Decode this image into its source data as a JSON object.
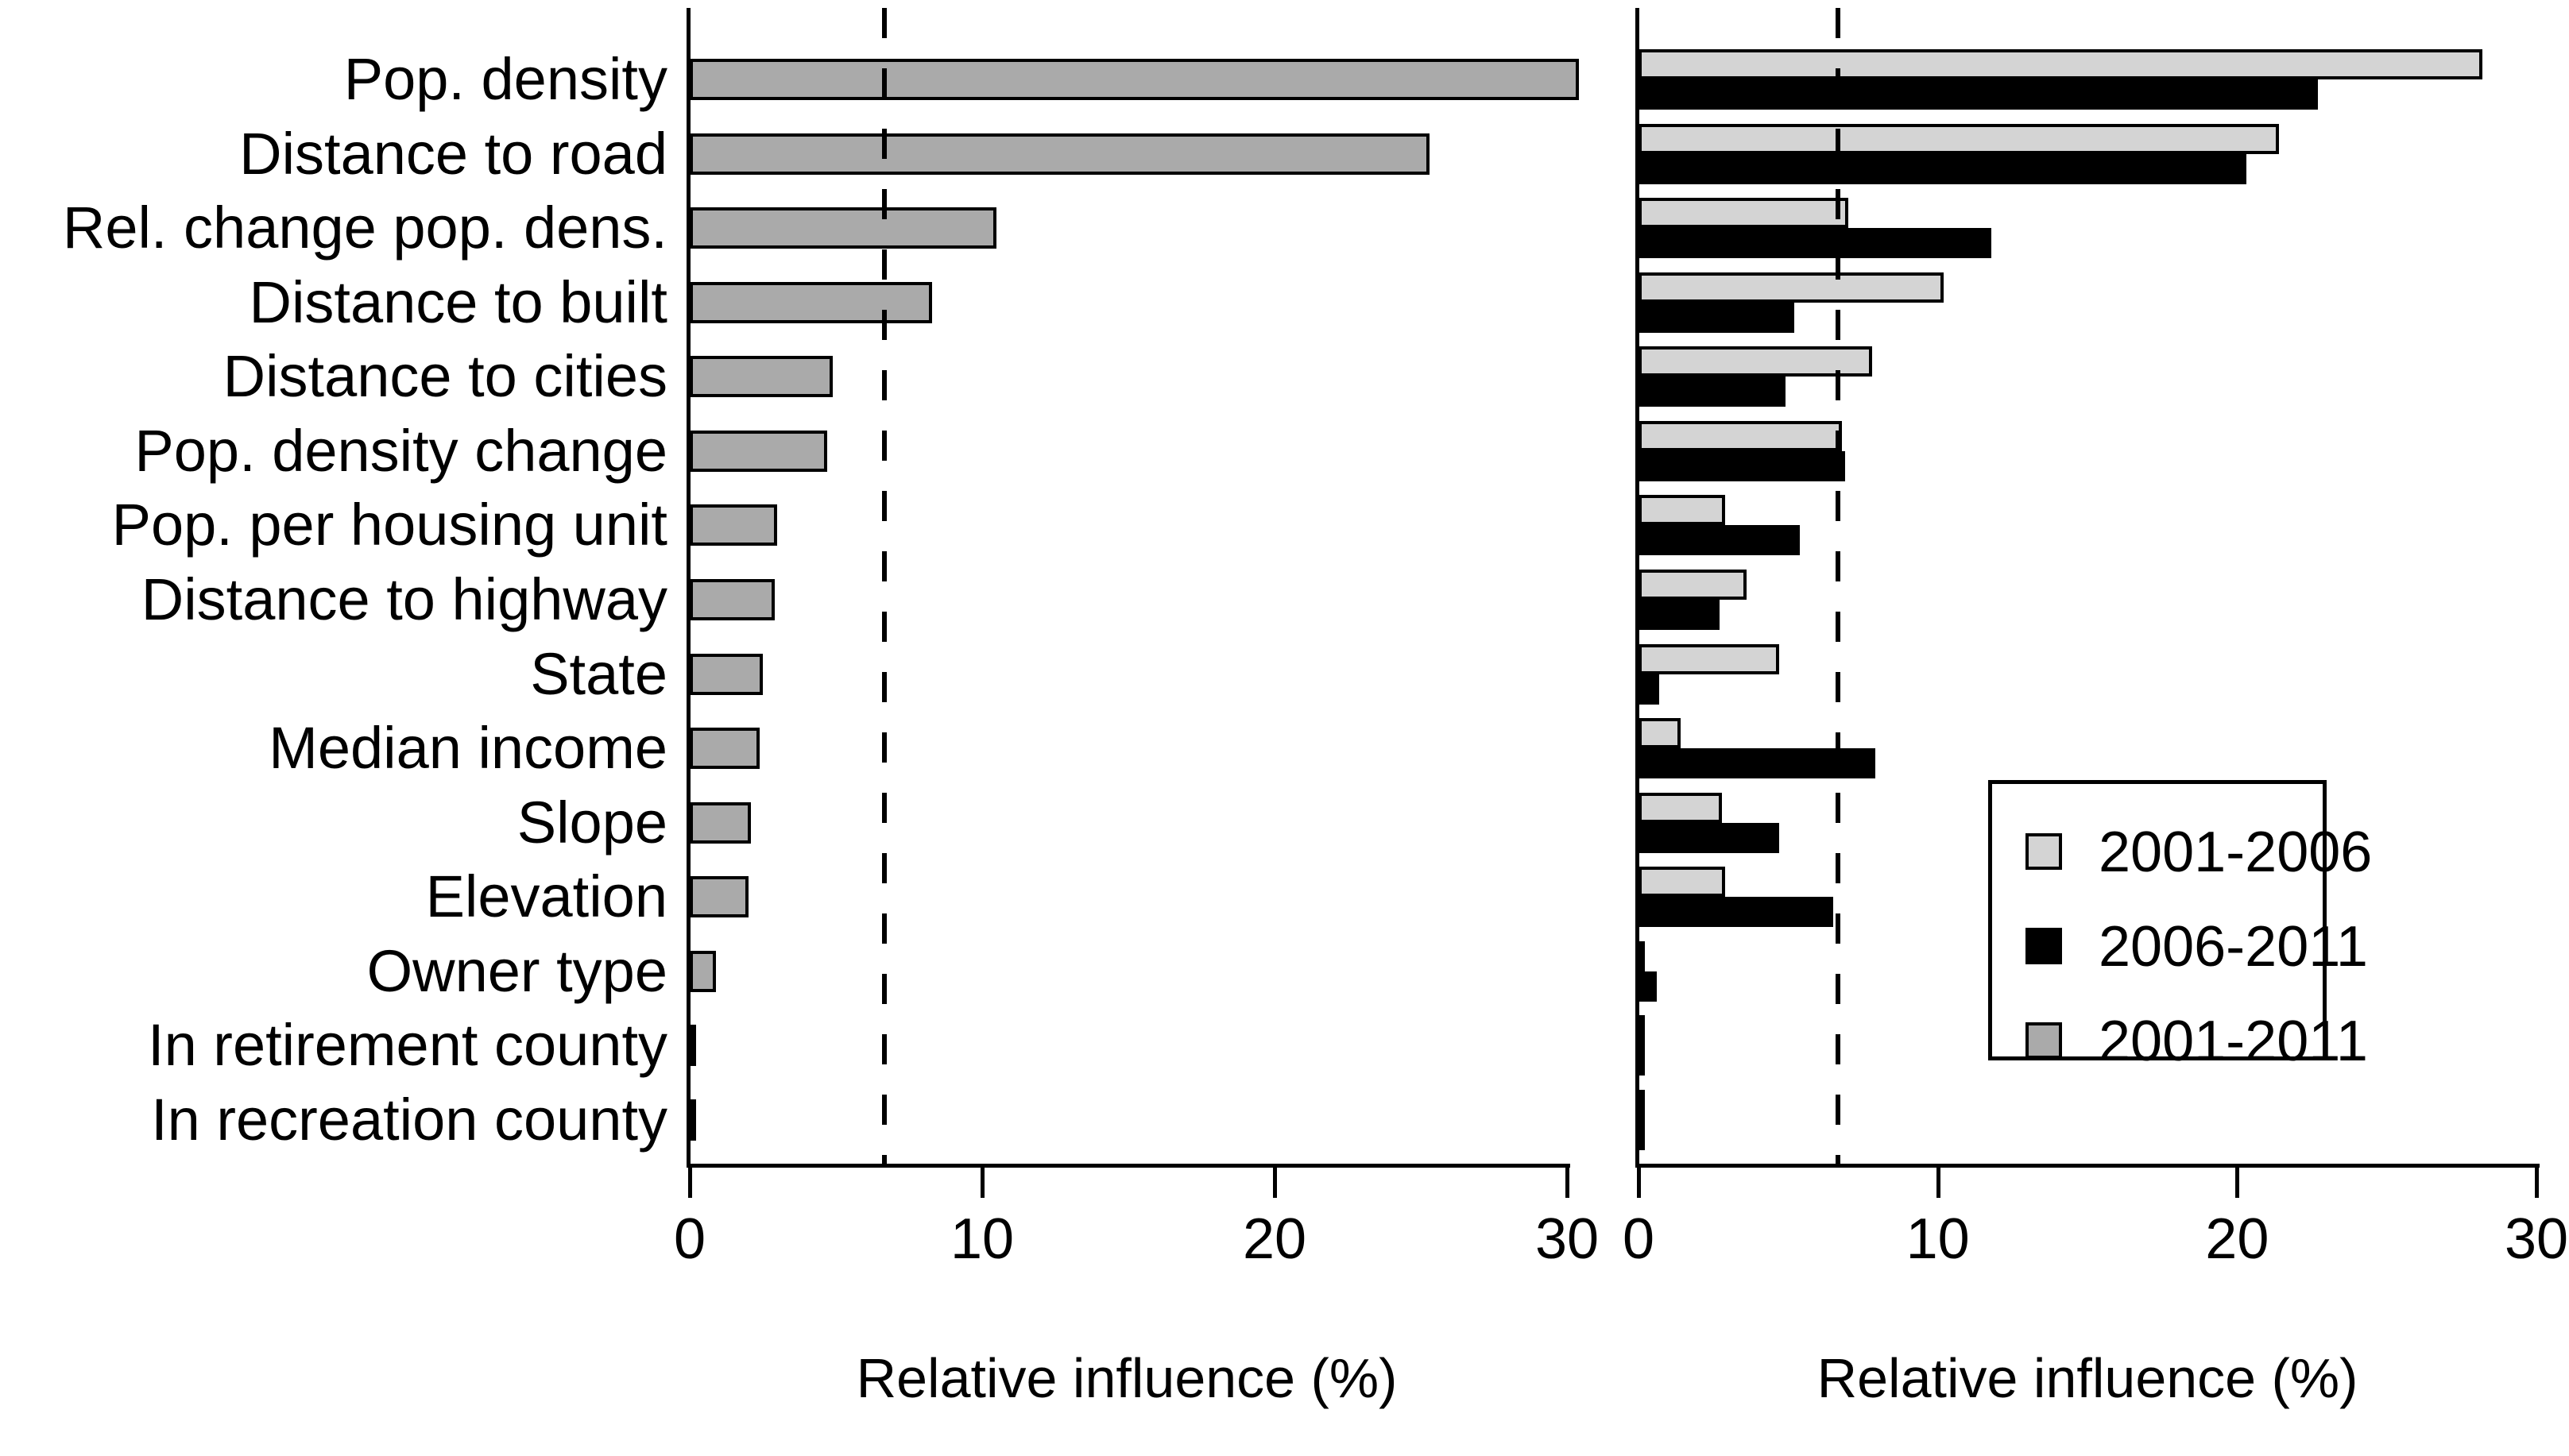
{
  "chart_data": {
    "type": "bar",
    "orientation": "horizontal",
    "title": "",
    "categories": [
      "Pop. density",
      "Distance to road",
      "Rel. change pop. dens.",
      "Distance to built",
      "Distance to cities",
      "Pop. density change",
      "Pop. per housing unit",
      "Distance to highway",
      "State",
      "Median income",
      "Slope",
      "Elevation",
      "In retirement county",
      "In recreation county"
    ],
    "categories_note": "Owner type appears between Elevation and In retirement county",
    "all_categories": [
      "Pop. density",
      "Distance to road",
      "Rel. change pop. dens.",
      "Distance to built",
      "Distance to cities",
      "Pop. density change",
      "Pop. per housing unit",
      "Distance to highway",
      "State",
      "Median income",
      "Slope",
      "Elevation",
      "Owner type",
      "In retirement county",
      "In recreation county"
    ],
    "panels": [
      {
        "name": "left",
        "xlabel": "Relative influence (%)",
        "xlim": [
          0,
          30
        ],
        "xticks": [
          0,
          10,
          20,
          30
        ],
        "threshold_line_x": 6.67,
        "grid": false,
        "series": [
          {
            "name": "2001-2011",
            "color": "#aaaaaa",
            "values": [
              30.4,
              25.3,
              10.5,
              8.3,
              4.9,
              4.7,
              3.0,
              2.9,
              2.5,
              2.4,
              2.1,
              2.0,
              0.9,
              0.07,
              0.07
            ]
          }
        ]
      },
      {
        "name": "right",
        "xlabel": "Relative influence (%)",
        "xlim": [
          0,
          30
        ],
        "xticks": [
          0,
          10,
          20,
          30
        ],
        "threshold_line_x": 6.67,
        "grid": false,
        "series": [
          {
            "name": "2001-2006",
            "color": "#d4d4d4",
            "values": [
              28.2,
              21.4,
              7.0,
              10.2,
              7.8,
              6.8,
              2.9,
              3.6,
              4.7,
              1.4,
              2.8,
              2.9,
              0.2,
              0.05,
              0.05
            ]
          },
          {
            "name": "2006-2011",
            "color": "#000000",
            "values": [
              22.7,
              20.3,
              11.8,
              5.2,
              4.9,
              6.9,
              5.4,
              2.7,
              0.7,
              7.9,
              4.7,
              6.5,
              0.6,
              0.05,
              0.05
            ]
          }
        ],
        "legend": {
          "position": "inside-lower-right",
          "entries": [
            {
              "label": "2001-2006",
              "color": "#d4d4d4"
            },
            {
              "label": "2006-2011",
              "color": "#000000"
            },
            {
              "label": "2001-2011",
              "color": "#aaaaaa"
            }
          ]
        }
      }
    ]
  }
}
